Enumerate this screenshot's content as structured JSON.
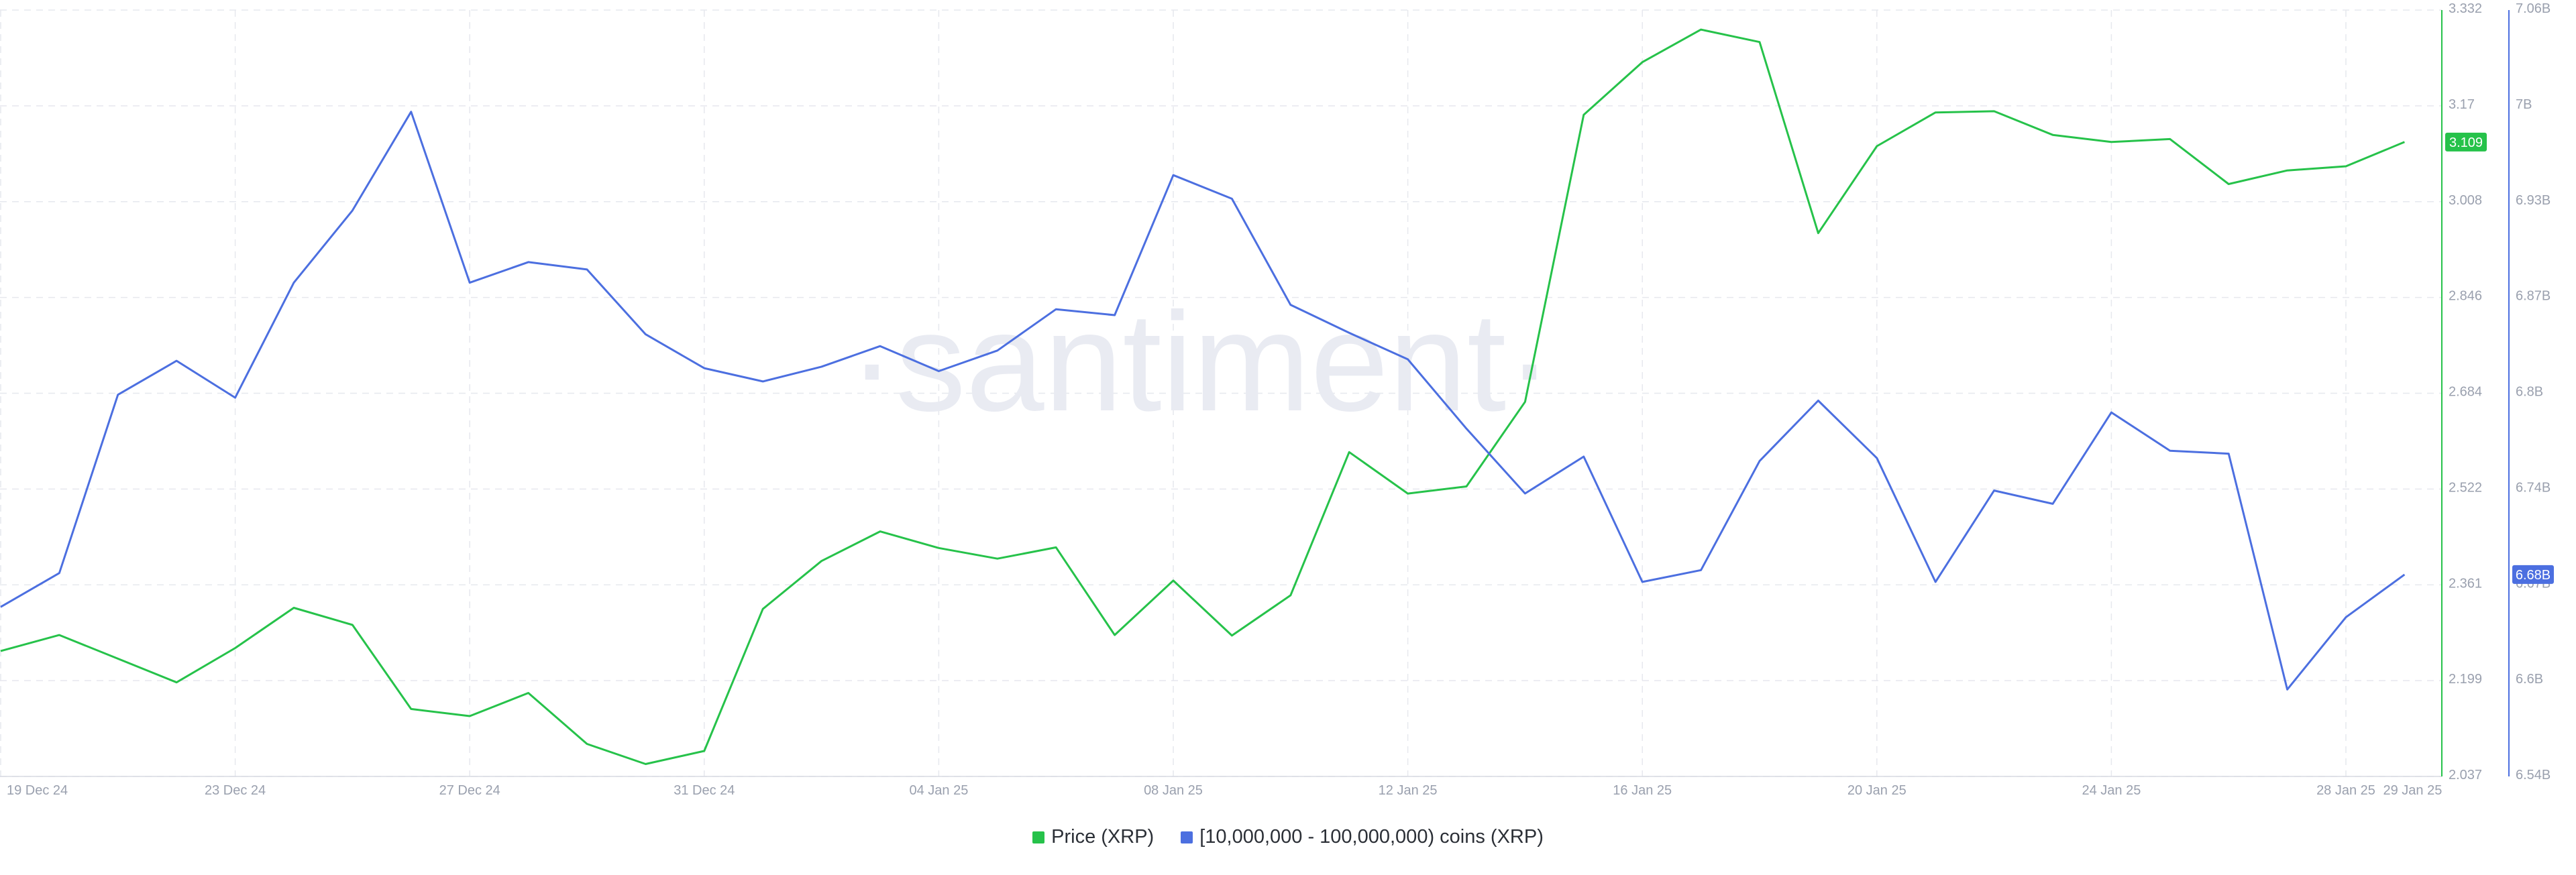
{
  "watermark": "·santiment·",
  "chart_data": {
    "type": "line",
    "x_ticks": [
      "19 Dec 24",
      "23 Dec 24",
      "27 Dec 24",
      "31 Dec 24",
      "04 Jan 25",
      "08 Jan 25",
      "12 Jan 25",
      "16 Jan 25",
      "20 Jan 25",
      "24 Jan 25",
      "28 Jan 25",
      "29 Jan 25"
    ],
    "y_axes": {
      "price": {
        "range": [
          2.037,
          3.332
        ],
        "ticks": [
          "3.332",
          "3.17",
          "3.008",
          "2.846",
          "2.684",
          "2.522",
          "2.361",
          "2.199",
          "2.037"
        ],
        "last_value_label": "3.109"
      },
      "holders": {
        "range": [
          6540000000,
          7060000000
        ],
        "ticks": [
          "7.06B",
          "7B",
          "6.93B",
          "6.87B",
          "6.8B",
          "6.74B",
          "6.67B",
          "6.6B",
          "6.54B"
        ],
        "last_value_label": "6.68B"
      }
    },
    "grid": true,
    "legend_position": "bottom-center",
    "series": [
      {
        "name": "Price (XRP)",
        "axis": "price",
        "color": "#26c24a",
        "x": [
          "2024-12-19",
          "2024-12-20",
          "2024-12-21",
          "2024-12-22",
          "2024-12-23",
          "2024-12-24",
          "2024-12-25",
          "2024-12-26",
          "2024-12-27",
          "2024-12-28",
          "2024-12-29",
          "2024-12-30",
          "2024-12-31",
          "2025-01-01",
          "2025-01-02",
          "2025-01-03",
          "2025-01-04",
          "2025-01-05",
          "2025-01-06",
          "2025-01-07",
          "2025-01-08",
          "2025-01-09",
          "2025-01-10",
          "2025-01-11",
          "2025-01-12",
          "2025-01-13",
          "2025-01-14",
          "2025-01-15",
          "2025-01-16",
          "2025-01-17",
          "2025-01-18",
          "2025-01-19",
          "2025-01-20",
          "2025-01-21",
          "2025-01-22",
          "2025-01-23",
          "2025-01-24",
          "2025-01-25",
          "2025-01-26",
          "2025-01-27",
          "2025-01-28",
          "2025-01-29"
        ],
        "values": [
          2.249,
          2.276,
          2.236,
          2.196,
          2.254,
          2.322,
          2.293,
          2.151,
          2.139,
          2.178,
          2.092,
          2.058,
          2.08,
          2.32,
          2.401,
          2.451,
          2.423,
          2.405,
          2.424,
          2.276,
          2.368,
          2.275,
          2.343,
          2.585,
          2.515,
          2.527,
          2.67,
          3.155,
          3.244,
          3.299,
          3.278,
          2.955,
          3.102,
          3.159,
          3.161,
          3.121,
          3.109,
          3.114,
          3.038,
          3.061,
          3.068,
          3.109
        ]
      },
      {
        "name": "[10,000,000 - 100,000,000) coins (XRP)",
        "axis": "holders",
        "color": "#4c6fe0",
        "x": [
          "2024-12-19",
          "2024-12-20",
          "2024-12-21",
          "2024-12-22",
          "2024-12-23",
          "2024-12-24",
          "2024-12-25",
          "2024-12-26",
          "2024-12-27",
          "2024-12-28",
          "2024-12-29",
          "2024-12-30",
          "2024-12-31",
          "2025-01-01",
          "2025-01-02",
          "2025-01-03",
          "2025-01-04",
          "2025-01-05",
          "2025-01-06",
          "2025-01-07",
          "2025-01-08",
          "2025-01-09",
          "2025-01-10",
          "2025-01-11",
          "2025-01-12",
          "2025-01-13",
          "2025-01-14",
          "2025-01-15",
          "2025-01-16",
          "2025-01-17",
          "2025-01-18",
          "2025-01-19",
          "2025-01-20",
          "2025-01-21",
          "2025-01-22",
          "2025-01-23",
          "2025-01-24",
          "2025-01-25",
          "2025-01-26",
          "2025-01-27",
          "2025-01-28",
          "2025-01-29"
        ],
        "values": [
          6655000000.0,
          6678000000.0,
          6799000000.0,
          6822000000.0,
          6797000000.0,
          6875000000.0,
          6924000000.0,
          6991000000.0,
          6875000000.0,
          6889000000.0,
          6884000000.0,
          6840000000.0,
          6817000000.0,
          6808000000.0,
          6818000000.0,
          6832000000.0,
          6815000000.0,
          6829000000.0,
          6857000000.0,
          6853000000.0,
          6948000000.0,
          6932000000.0,
          6860000000.0,
          6841000000.0,
          6823000000.0,
          6776000000.0,
          6732000000.0,
          6757000000.0,
          6672000000.0,
          6680000000.0,
          6754000000.0,
          6795000000.0,
          6756000000.0,
          6672000000.0,
          6734000000.0,
          6725000000.0,
          6787000000.0,
          6761000000.0,
          6759000000.0,
          6599000000.0,
          6648000000.0,
          6677000000.0
        ]
      }
    ]
  }
}
